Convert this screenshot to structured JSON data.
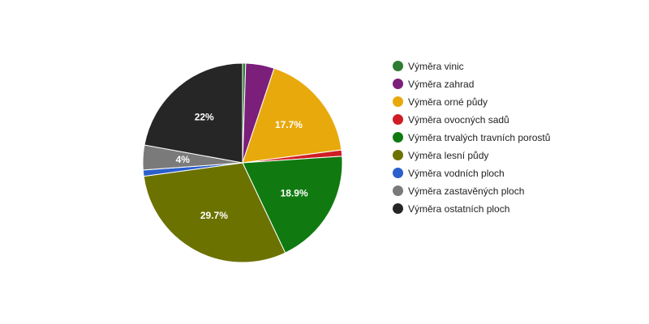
{
  "chart_data": {
    "type": "pie",
    "title": "",
    "slices": [
      {
        "name": "Výměra vinic",
        "value": 0.5,
        "color": "#2e7d32",
        "label": ""
      },
      {
        "name": "Výměra zahrad",
        "value": 4.6,
        "color": "#7b1f7a",
        "label": ""
      },
      {
        "name": "Výměra orné půdy",
        "value": 17.7,
        "color": "#e8a90c",
        "label": "17.7%"
      },
      {
        "name": "Výměra ovocných sadů",
        "value": 1.0,
        "color": "#cf1d25",
        "label": ""
      },
      {
        "name": "Výměra trvalých travních porostů",
        "value": 18.9,
        "color": "#107a10",
        "label": "18.9%"
      },
      {
        "name": "Výměra lesní půdy",
        "value": 29.7,
        "color": "#6b7200",
        "label": "29.7%"
      },
      {
        "name": "Výměra vodních ploch",
        "value": 1.0,
        "color": "#2a5fcc",
        "label": ""
      },
      {
        "name": "Výměra zastavěných ploch",
        "value": 4.0,
        "color": "#7a7a7a",
        "label": "4%"
      },
      {
        "name": "Výměra ostatních ploch",
        "value": 22.0,
        "color": "#262626",
        "label": "22%"
      }
    ],
    "legend_position": "right",
    "start": "top, clockwise"
  }
}
